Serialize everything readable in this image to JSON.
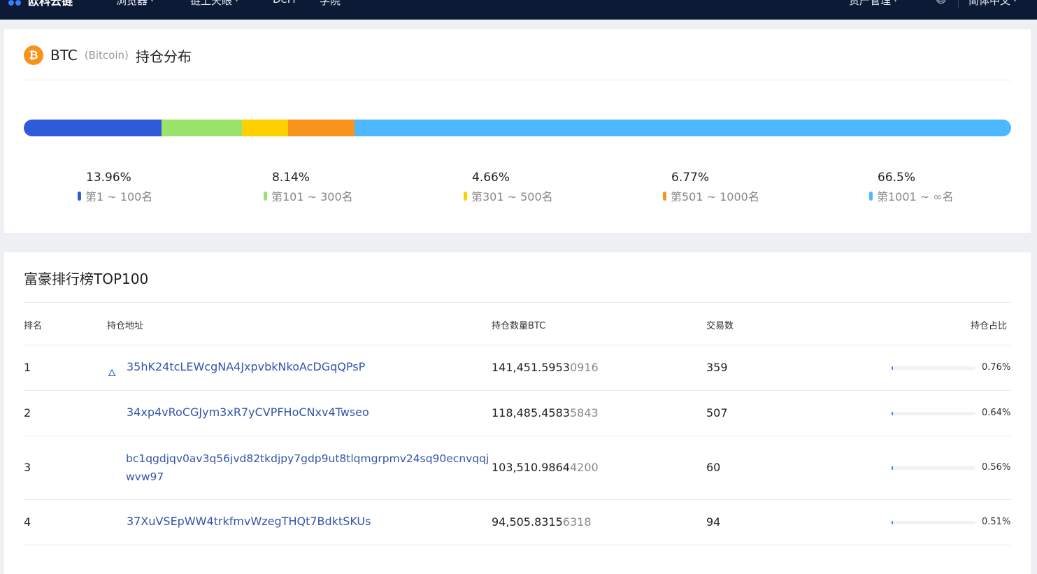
{
  "nav": {
    "logo_text": "欧科云链",
    "items": [
      {
        "label": "浏览器",
        "dropdown": true
      },
      {
        "label": "链上天眼",
        "dropdown": true
      },
      {
        "label": "DeFi",
        "dropdown": false
      },
      {
        "label": "学院",
        "dropdown": false
      }
    ],
    "right_items": [
      {
        "label": "资产管理",
        "dropdown": true
      },
      {
        "label": "",
        "icon": "user-icon"
      },
      {
        "label": "简体中文",
        "dropdown": true
      }
    ]
  },
  "distribution": {
    "coin_symbol": "BTC",
    "coin_name": "(Bitcoin)",
    "title": "持仓分布",
    "icon": "bitcoin-icon",
    "segments": [
      {
        "pct_label": "13.96%",
        "pct": 13.96,
        "label": "第1 ~ 100名",
        "color": "#2f5bd9"
      },
      {
        "pct_label": "8.14%",
        "pct": 8.14,
        "label": "第101 ~ 300名",
        "color": "#9be26a"
      },
      {
        "pct_label": "4.66%",
        "pct": 4.66,
        "label": "第301 ~ 500名",
        "color": "#ffd000"
      },
      {
        "pct_label": "6.77%",
        "pct": 6.77,
        "label": "第501 ~ 1000名",
        "color": "#f7941d"
      },
      {
        "pct_label": "66.5%",
        "pct": 66.5,
        "label": "第1001 ~ ∞名",
        "color": "#4db8ff"
      }
    ]
  },
  "ranking": {
    "title": "富豪排行榜TOP100",
    "headers": {
      "rank": "排名",
      "address": "持仓地址",
      "amount": "持仓数量BTC",
      "txs": "交易数",
      "share": "持仓占比"
    },
    "rows": [
      {
        "rank": "1",
        "address": "35hK24tcLEWcgNA4JxpvbkNkoAcDGqQPsP",
        "amount_main": "141,451.5953",
        "amount_tail": "0916",
        "txs": "359",
        "share": 0.76,
        "share_label": "0.76%",
        "icon": "flame-icon"
      },
      {
        "rank": "2",
        "address": "34xp4vRoCGJym3xR7yCVPFHoCNxv4Twseo",
        "amount_main": "118,485.4583",
        "amount_tail": "5843",
        "txs": "507",
        "share": 0.64,
        "share_label": "0.64%"
      },
      {
        "rank": "3",
        "address": "bc1qgdjqv0av3q56jvd82tkdjpy7gdp9ut8tlqmgrpmv24sq90ecnvqqj\nwvw97",
        "amount_main": "103,510.9864",
        "amount_tail": "4200",
        "txs": "60",
        "share": 0.56,
        "share_label": "0.56%"
      },
      {
        "rank": "4",
        "address": "37XuVSEpWW4trkfmvWzegTHQt7BdktSKUs",
        "amount_main": "94,505.8315",
        "amount_tail": "6318",
        "txs": "94",
        "share": 0.51,
        "share_label": "0.51%"
      }
    ]
  }
}
